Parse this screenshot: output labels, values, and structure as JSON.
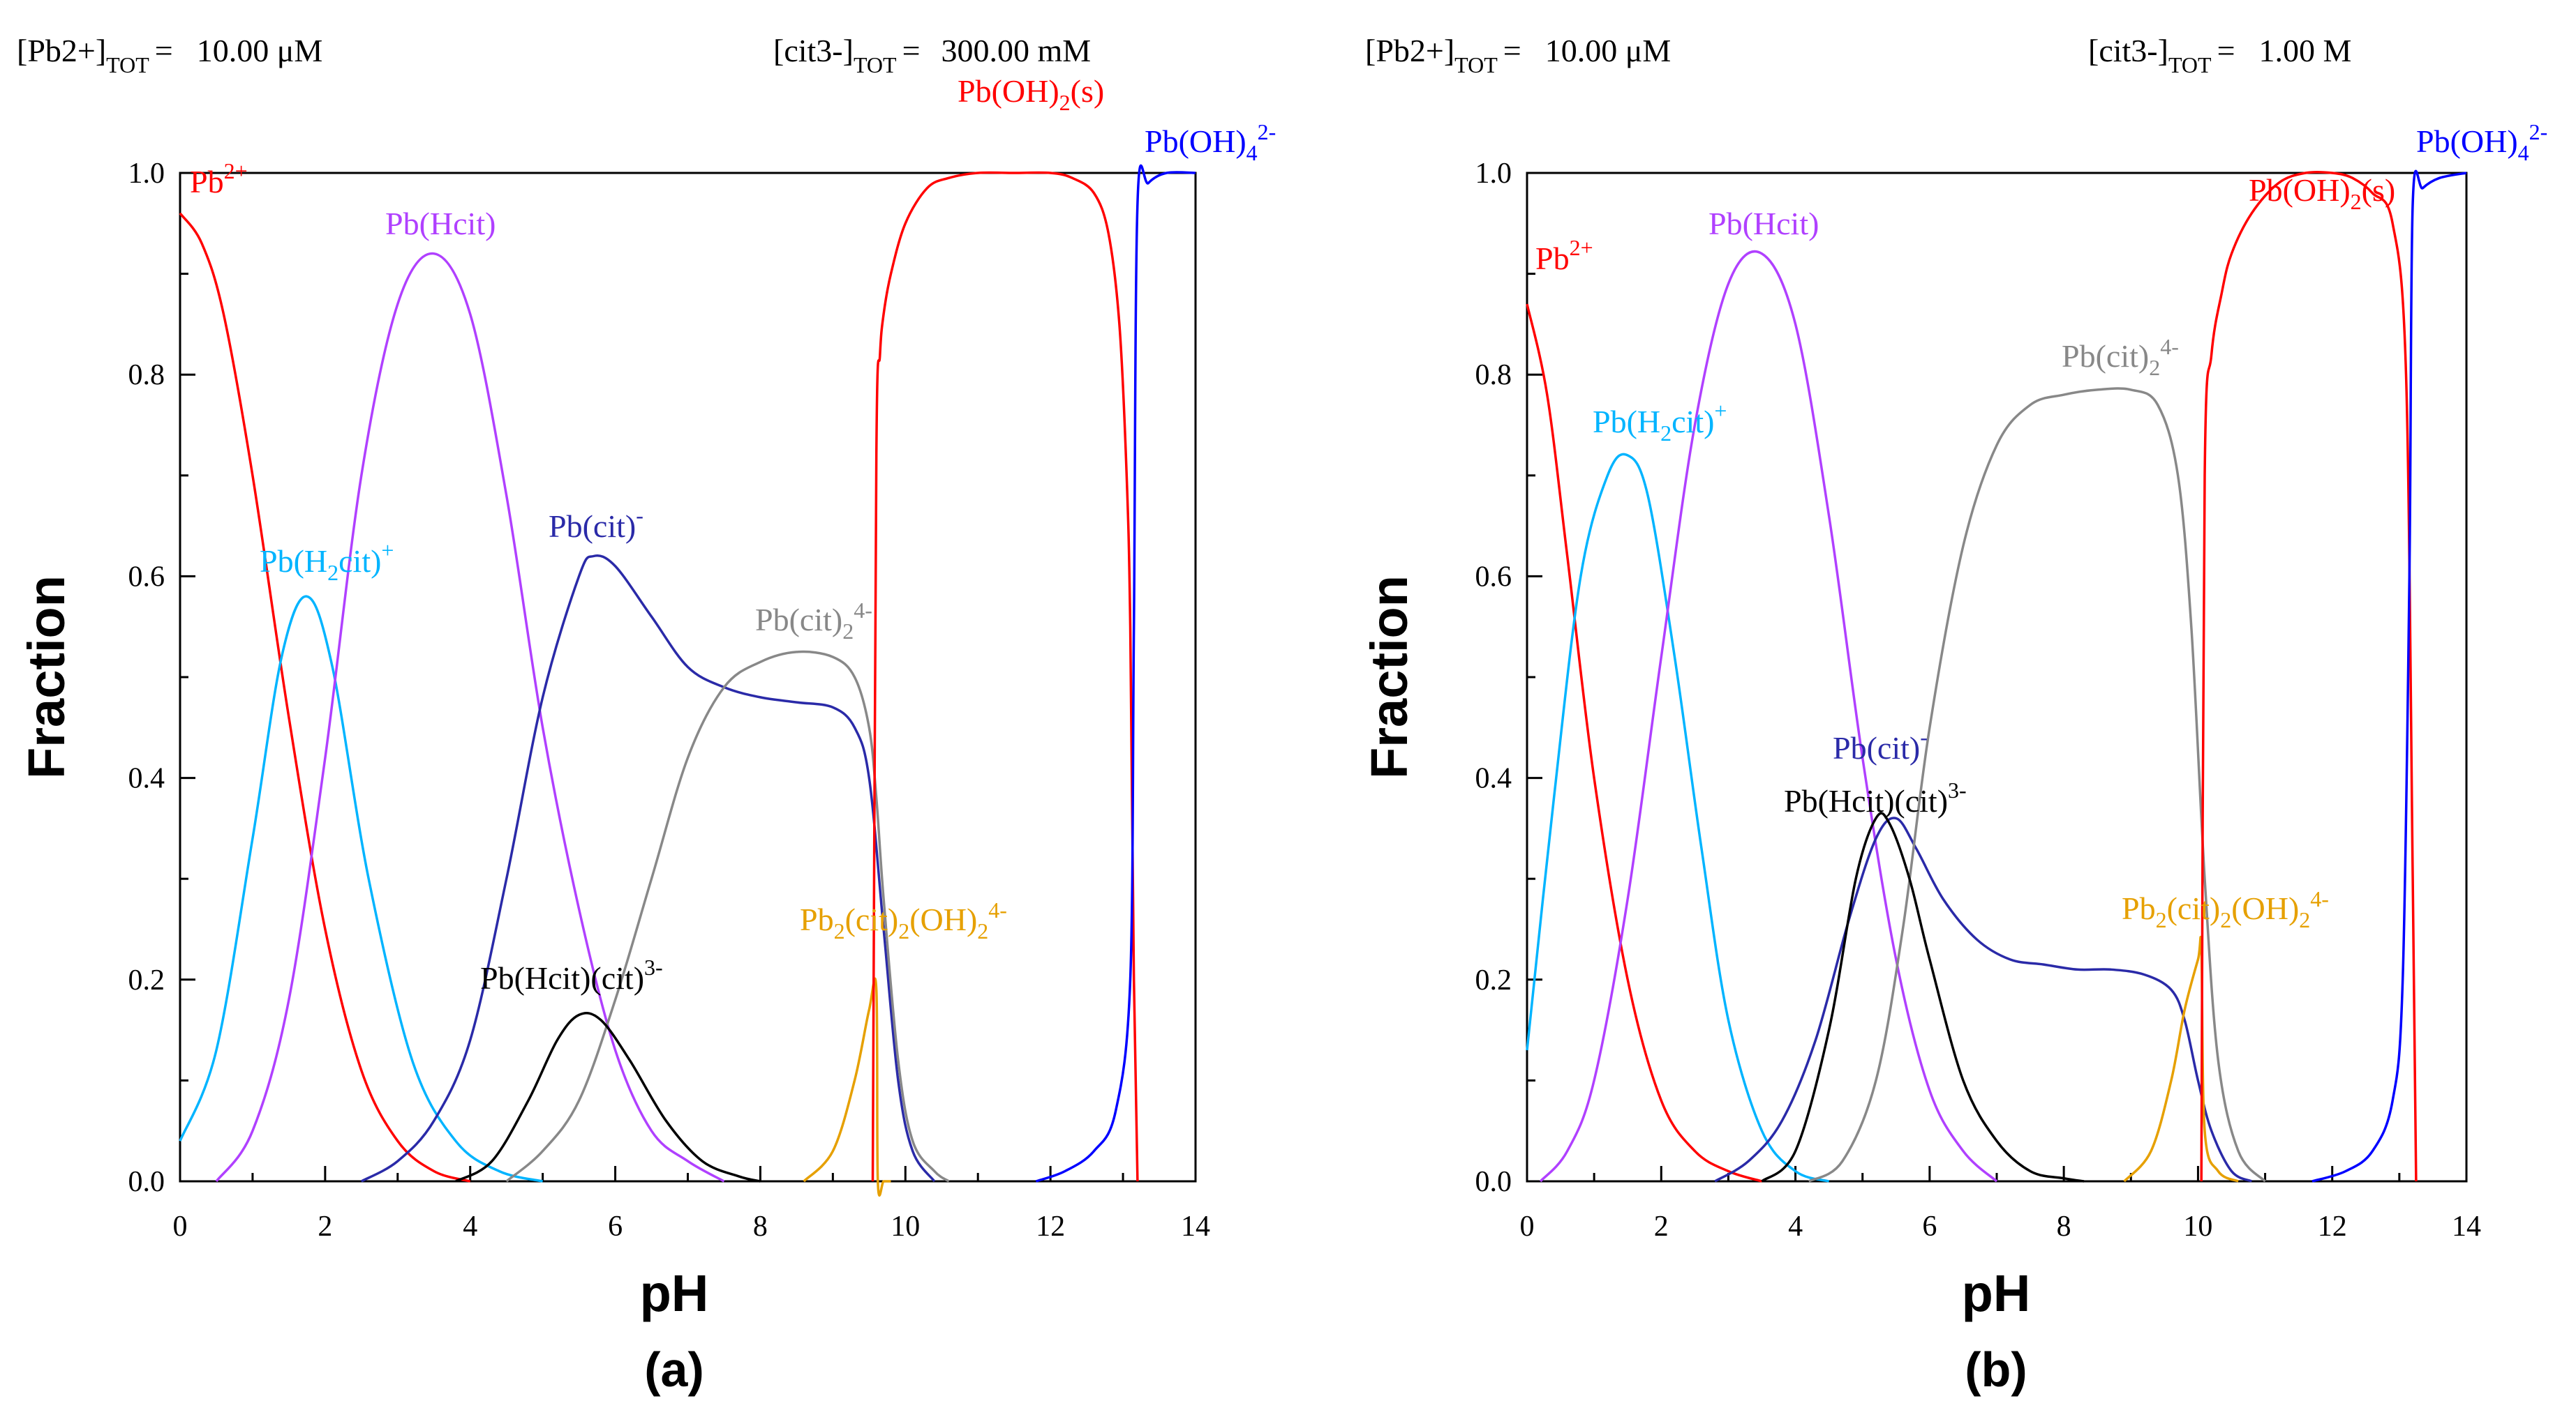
{
  "chart_data": [
    {
      "type": "line",
      "panel_label": "(a)",
      "xlabel": "pH",
      "ylabel": "Fraction",
      "xlim": [
        0,
        14
      ],
      "ylim": [
        0,
        1
      ],
      "x_ticks": [
        "0",
        "2",
        "4",
        "6",
        "8",
        "10",
        "12",
        "14"
      ],
      "y_ticks": [
        "0.0",
        "0.2",
        "0.4",
        "0.6",
        "0.8",
        "1.0"
      ],
      "pb_total": {
        "species": "[Pb2+]",
        "sup": "2+",
        "sub": "TOT",
        "eq": "=",
        "value": "10.00 μM"
      },
      "cit_total": {
        "species": "[cit3-]",
        "sup": "3-",
        "sub": "TOT",
        "eq": "=",
        "value": "300.00 mM"
      },
      "series": [
        {
          "name": "Pb2+",
          "color": "#ff0000",
          "x": [
            0,
            0.3,
            0.6,
            1.0,
            1.5,
            2.0,
            2.5,
            3.0,
            3.5,
            4.0
          ],
          "y": [
            0.96,
            0.93,
            0.86,
            0.7,
            0.46,
            0.25,
            0.11,
            0.04,
            0.01,
            0.0
          ]
        },
        {
          "name": "Pb(H2cit)+",
          "color": "#00b4ff",
          "x": [
            0,
            0.5,
            1.0,
            1.4,
            1.75,
            2.1,
            2.6,
            3.2,
            3.8,
            4.4,
            5.0
          ],
          "y": [
            0.04,
            0.13,
            0.34,
            0.52,
            0.58,
            0.51,
            0.3,
            0.12,
            0.04,
            0.01,
            0.0
          ]
        },
        {
          "name": "Pb(Hcit)",
          "color": "#b040ff",
          "x": [
            0.5,
            1.0,
            1.5,
            2.0,
            2.5,
            3.0,
            3.5,
            4.0,
            4.5,
            5.0,
            5.5,
            6.0,
            6.5,
            7.0,
            7.5
          ],
          "y": [
            0.0,
            0.05,
            0.18,
            0.42,
            0.7,
            0.87,
            0.92,
            0.86,
            0.68,
            0.45,
            0.27,
            0.13,
            0.05,
            0.02,
            0.0
          ]
        },
        {
          "name": "Pb(cit)-",
          "color": "#2a2aa8",
          "x": [
            2.5,
            3.0,
            3.5,
            4.0,
            4.5,
            5.0,
            5.5,
            5.7,
            6.0,
            6.5,
            7.0,
            7.5,
            8.0,
            8.5,
            9.0,
            9.3,
            9.5,
            9.7,
            9.9,
            10.1,
            10.4
          ],
          "y": [
            0.0,
            0.02,
            0.06,
            0.14,
            0.3,
            0.48,
            0.6,
            0.62,
            0.61,
            0.56,
            0.51,
            0.49,
            0.48,
            0.475,
            0.47,
            0.45,
            0.4,
            0.25,
            0.1,
            0.03,
            0.0
          ]
        },
        {
          "name": "Pb(cit)2 4-",
          "color": "#888888",
          "x": [
            4.5,
            5.0,
            5.5,
            6.0,
            6.5,
            7.0,
            7.5,
            8.0,
            8.5,
            9.0,
            9.3,
            9.5,
            9.6,
            9.7,
            9.9,
            10.1,
            10.4,
            10.6
          ],
          "y": [
            0.0,
            0.03,
            0.08,
            0.18,
            0.3,
            0.42,
            0.49,
            0.515,
            0.525,
            0.52,
            0.5,
            0.45,
            0.38,
            0.28,
            0.12,
            0.04,
            0.01,
            0.0
          ]
        },
        {
          "name": "Pb(Hcit)(cit)3-",
          "color": "#000000",
          "x": [
            3.8,
            4.3,
            4.8,
            5.2,
            5.5,
            5.8,
            6.2,
            6.7,
            7.2,
            7.7,
            8.0
          ],
          "y": [
            0.0,
            0.02,
            0.08,
            0.14,
            0.165,
            0.16,
            0.12,
            0.06,
            0.02,
            0.005,
            0.0
          ]
        },
        {
          "name": "Pb2(cit)2(OH)2 4-",
          "color": "#e6a000",
          "x": [
            8.6,
            9.0,
            9.3,
            9.5,
            9.6,
            9.62,
            9.7,
            9.8
          ],
          "y": [
            0.0,
            0.03,
            0.1,
            0.17,
            0.19,
            0.0,
            0.0,
            0.0
          ]
        },
        {
          "name": "Pb(OH)2(s)",
          "color": "#ff0000",
          "x": [
            9.55,
            9.6,
            9.65,
            9.7,
            9.8,
            10.0,
            10.3,
            10.6,
            11.0,
            11.5,
            12.0,
            12.3,
            12.6,
            12.8,
            12.95,
            13.05,
            13.1,
            13.15,
            13.2
          ],
          "y": [
            0.0,
            0.72,
            0.82,
            0.86,
            0.9,
            0.95,
            0.985,
            0.995,
            1.0,
            1.0,
            1.0,
            0.995,
            0.98,
            0.94,
            0.85,
            0.7,
            0.55,
            0.2,
            0.0
          ]
        },
        {
          "name": "Pb(OH)4 2-",
          "color": "#0000ff",
          "x": [
            11.8,
            12.2,
            12.6,
            12.9,
            13.1,
            13.15,
            13.2,
            13.35,
            13.6,
            14.0
          ],
          "y": [
            0.0,
            0.01,
            0.03,
            0.07,
            0.2,
            0.55,
            0.97,
            0.99,
            1.0,
            1.0
          ]
        }
      ]
    },
    {
      "type": "line",
      "panel_label": "(b)",
      "xlabel": "pH",
      "ylabel": "Fraction",
      "xlim": [
        0,
        14
      ],
      "ylim": [
        0,
        1
      ],
      "x_ticks": [
        "0",
        "2",
        "4",
        "6",
        "8",
        "10",
        "12",
        "14"
      ],
      "y_ticks": [
        "0.0",
        "0.2",
        "0.4",
        "0.6",
        "0.8",
        "1.0"
      ],
      "pb_total": {
        "species": "[Pb2+]",
        "sup": "2+",
        "sub": "TOT",
        "eq": "=",
        "value": "10.00 μM"
      },
      "cit_total": {
        "species": "[cit3-]",
        "sup": "3-",
        "sub": "TOT",
        "eq": "=",
        "value": "1.00 M"
      },
      "series": [
        {
          "name": "Pb2+",
          "color": "#ff0000",
          "x": [
            0,
            0.3,
            0.6,
            1.0,
            1.5,
            2.0,
            2.5,
            3.0,
            3.5
          ],
          "y": [
            0.87,
            0.78,
            0.62,
            0.4,
            0.2,
            0.08,
            0.03,
            0.01,
            0.0
          ]
        },
        {
          "name": "Pb(H2cit)+",
          "color": "#00b4ff",
          "x": [
            0,
            0.4,
            0.8,
            1.2,
            1.5,
            1.8,
            2.2,
            2.6,
            3.0,
            3.5,
            4.0,
            4.5
          ],
          "y": [
            0.13,
            0.38,
            0.6,
            0.7,
            0.72,
            0.68,
            0.52,
            0.33,
            0.16,
            0.05,
            0.01,
            0.0
          ]
        },
        {
          "name": "Pb(Hcit)",
          "color": "#b040ff",
          "x": [
            0.2,
            0.6,
            1.0,
            1.5,
            2.0,
            2.5,
            3.0,
            3.5,
            4.0,
            4.5,
            5.0,
            5.5,
            6.0,
            6.5,
            7.0
          ],
          "y": [
            0.0,
            0.03,
            0.1,
            0.28,
            0.52,
            0.75,
            0.89,
            0.92,
            0.85,
            0.66,
            0.42,
            0.22,
            0.09,
            0.03,
            0.0
          ]
        },
        {
          "name": "Pb(cit)-",
          "color": "#2a2aa8",
          "x": [
            2.8,
            3.3,
            3.8,
            4.3,
            4.8,
            5.2,
            5.5,
            5.8,
            6.2,
            6.7,
            7.2,
            7.7,
            8.2,
            8.7,
            9.2,
            9.6,
            9.8,
            10.0,
            10.2,
            10.5,
            10.8
          ],
          "y": [
            0.0,
            0.02,
            0.06,
            0.14,
            0.26,
            0.34,
            0.36,
            0.33,
            0.28,
            0.24,
            0.22,
            0.215,
            0.21,
            0.21,
            0.205,
            0.19,
            0.16,
            0.1,
            0.05,
            0.01,
            0.0
          ]
        },
        {
          "name": "Pb(cit)2 4-",
          "color": "#888888",
          "x": [
            4.2,
            4.7,
            5.2,
            5.6,
            6.0,
            6.5,
            7.0,
            7.5,
            8.0,
            8.5,
            9.0,
            9.4,
            9.7,
            9.9,
            10.1,
            10.3,
            10.6,
            11.0
          ],
          "y": [
            0.0,
            0.02,
            0.1,
            0.25,
            0.45,
            0.63,
            0.73,
            0.77,
            0.78,
            0.785,
            0.785,
            0.77,
            0.7,
            0.55,
            0.3,
            0.12,
            0.03,
            0.0
          ]
        },
        {
          "name": "Pb(Hcit)(cit)3-",
          "color": "#000000",
          "x": [
            3.5,
            4.0,
            4.5,
            4.9,
            5.2,
            5.4,
            5.7,
            6.0,
            6.5,
            7.0,
            7.5,
            8.0,
            8.3
          ],
          "y": [
            0.0,
            0.03,
            0.15,
            0.3,
            0.36,
            0.355,
            0.3,
            0.22,
            0.1,
            0.04,
            0.01,
            0.003,
            0.0
          ]
        },
        {
          "name": "Pb2(cit)2(OH)2 4-",
          "color": "#e6a000",
          "x": [
            8.9,
            9.3,
            9.6,
            9.8,
            10.0,
            10.05,
            10.1,
            10.3,
            10.6
          ],
          "y": [
            0.0,
            0.03,
            0.1,
            0.17,
            0.22,
            0.23,
            0.05,
            0.01,
            0.0
          ]
        },
        {
          "name": "Pb(OH)2(s)",
          "color": "#ff0000",
          "x": [
            10.05,
            10.1,
            10.2,
            10.35,
            10.5,
            10.8,
            11.2,
            11.6,
            12.0,
            12.3,
            12.6,
            12.9,
            13.1,
            13.2,
            13.25
          ],
          "y": [
            0.0,
            0.7,
            0.82,
            0.88,
            0.92,
            0.96,
            0.99,
            1.0,
            1.0,
            0.995,
            0.98,
            0.95,
            0.8,
            0.3,
            0.0
          ]
        },
        {
          "name": "Pb(OH)4 2-",
          "color": "#0000ff",
          "x": [
            11.7,
            12.2,
            12.6,
            12.9,
            13.05,
            13.15,
            13.2,
            13.35,
            13.6,
            14.0
          ],
          "y": [
            0.0,
            0.01,
            0.03,
            0.08,
            0.2,
            0.6,
            0.97,
            0.985,
            0.995,
            1.0
          ]
        }
      ]
    }
  ]
}
